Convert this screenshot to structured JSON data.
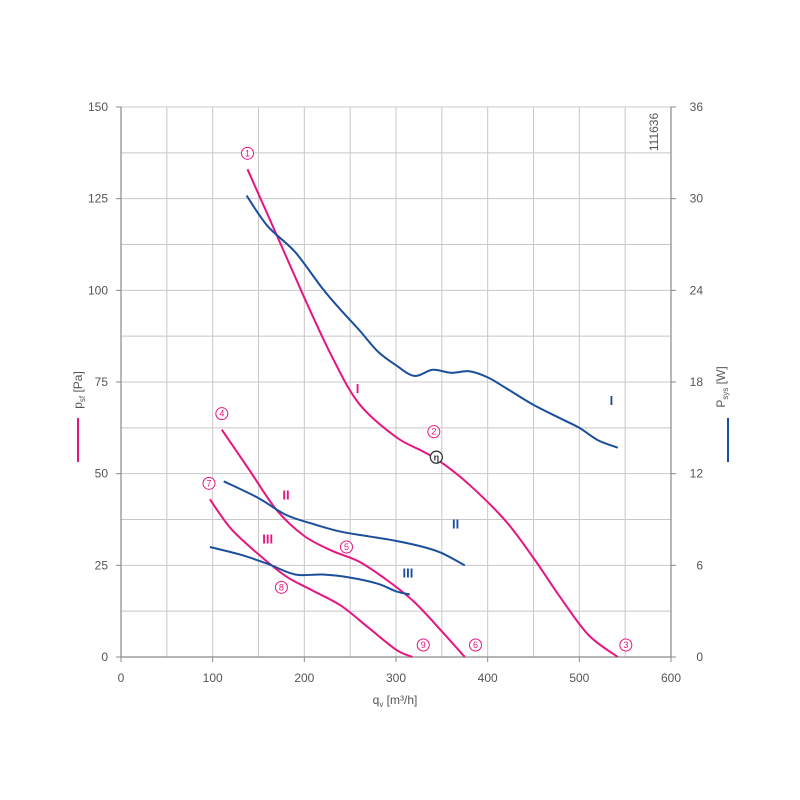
{
  "chart_data": {
    "type": "line",
    "xlabel": "q",
    "xlabel_sub": "v",
    "xlabel_unit": " [m³/h]",
    "ylabel_left": "p",
    "ylabel_left_sub": "sf",
    "ylabel_left_unit": " [Pa]",
    "ylabel_right": "P",
    "ylabel_right_sub": "sys",
    "ylabel_right_unit": " [W]",
    "xlim": [
      0,
      600
    ],
    "ylim_left": [
      0,
      150
    ],
    "ylim_right": [
      0,
      36
    ],
    "x_ticks": [
      "0",
      "100",
      "200",
      "300",
      "400",
      "500",
      "600"
    ],
    "y_left_ticks": [
      "0",
      "25",
      "50",
      "75",
      "100",
      "125",
      "150"
    ],
    "y_right_ticks": [
      "0",
      "6",
      "12",
      "18",
      "24",
      "30",
      "36"
    ],
    "chart_id": "111636",
    "grid": true,
    "colors": {
      "pressure": "#e6157f",
      "power": "#1b4f9c",
      "grid": "#c8c8c8",
      "axis": "#8a8a8a"
    },
    "series": [
      {
        "name": "I",
        "axis": "left",
        "color": "#e6157f",
        "x": [
          138,
          170,
          200,
          230,
          260,
          300,
          330,
          350,
          380,
          420,
          450,
          480,
          510,
          542
        ],
        "y": [
          133,
          115,
          98,
          82,
          69,
          60,
          56,
          53,
          47,
          37,
          27,
          16,
          6,
          0
        ]
      },
      {
        "name": "II",
        "axis": "left",
        "color": "#e6157f",
        "x": [
          110,
          140,
          170,
          200,
          230,
          260,
          290,
          320,
          350,
          375
        ],
        "y": [
          62,
          51,
          40,
          33,
          29,
          26,
          21,
          15,
          7,
          0
        ]
      },
      {
        "name": "III",
        "axis": "left",
        "color": "#e6157f",
        "x": [
          97,
          120,
          150,
          180,
          210,
          240,
          270,
          300,
          318
        ],
        "y": [
          43,
          35,
          28,
          22,
          18,
          14,
          8,
          2,
          0
        ]
      },
      {
        "name": "I",
        "axis": "right",
        "color": "#1b4f9c",
        "x": [
          137,
          160,
          190,
          220,
          240,
          260,
          280,
          300,
          320,
          340,
          360,
          380,
          400,
          420,
          450,
          480,
          500,
          520,
          542
        ],
        "y": [
          30.2,
          28.2,
          26.5,
          24.1,
          22.7,
          21.4,
          20.0,
          19.1,
          18.4,
          18.8,
          18.6,
          18.7,
          18.3,
          17.6,
          16.5,
          15.6,
          15.0,
          14.2,
          13.7
        ]
      },
      {
        "name": "II",
        "axis": "right",
        "color": "#1b4f9c",
        "x": [
          112,
          150,
          180,
          210,
          240,
          270,
          300,
          330,
          350,
          375
        ],
        "y": [
          11.5,
          10.4,
          9.3,
          8.7,
          8.2,
          7.9,
          7.6,
          7.2,
          6.8,
          6.0
        ]
      },
      {
        "name": "III",
        "axis": "right",
        "color": "#1b4f9c",
        "x": [
          97,
          130,
          160,
          190,
          220,
          250,
          280,
          300,
          315
        ],
        "y": [
          7.2,
          6.7,
          6.1,
          5.4,
          5.4,
          5.2,
          4.8,
          4.3,
          4.1
        ]
      }
    ],
    "operating_points": [
      {
        "label": "1",
        "x": 138,
        "y": 133
      },
      {
        "label": "2",
        "x": 350,
        "y": 56
      },
      {
        "label": "3",
        "x": 542,
        "y": 0
      },
      {
        "label": "4",
        "x": 110,
        "y": 62
      },
      {
        "label": "5",
        "x": 246,
        "y": 30
      },
      {
        "label": "6",
        "x": 378,
        "y": 0
      },
      {
        "label": "7",
        "x": 96,
        "y": 43
      },
      {
        "label": "8",
        "x": 175,
        "y": 19
      },
      {
        "label": "9",
        "x": 321,
        "y": 0
      }
    ],
    "efficiency_marker": {
      "label": "η",
      "x": 344,
      "y": 54.5
    }
  }
}
